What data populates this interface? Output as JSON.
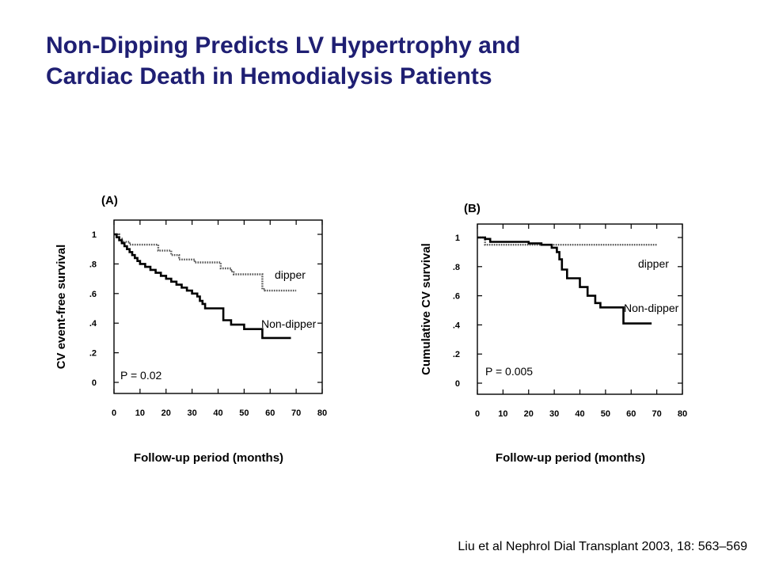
{
  "slide": {
    "title_line1": "Non-Dipping Predicts LV Hypertrophy and",
    "title_line2": "Cardiac Death in Hemodialysis Patients",
    "citation": "Liu et al Nephrol Dial Transplant 2003, 18: 563–569",
    "title_color": "#1f1f73"
  },
  "chart_data": [
    {
      "type": "line",
      "step": true,
      "panel_label": "(A)",
      "ylabel": "CV event-free survival",
      "xlabel": "Follow-up period (months)",
      "xlim": [
        0,
        80
      ],
      "ylim": [
        0,
        1
      ],
      "x_tick_labels": [
        "0",
        "10",
        "20",
        "30",
        "40",
        "50",
        "60",
        "70",
        "80"
      ],
      "y_tick_labels": [
        "0",
        ".2",
        ".4",
        ".6",
        ".8",
        "1"
      ],
      "y_tick_values": [
        0,
        0.2,
        0.4,
        0.6,
        0.8,
        1
      ],
      "annotation": "P = 0.02",
      "series": [
        {
          "name": "dipper",
          "style": "dashed",
          "x": [
            0,
            2,
            3,
            6,
            11,
            17,
            22,
            25,
            31,
            40,
            41,
            45,
            46,
            47,
            57,
            58,
            70
          ],
          "y": [
            1,
            0.97,
            0.95,
            0.93,
            0.93,
            0.89,
            0.86,
            0.83,
            0.81,
            0.81,
            0.77,
            0.75,
            0.73,
            0.73,
            0.63,
            0.62,
            0.62
          ]
        },
        {
          "name": "Non-dipper",
          "style": "solid",
          "x": [
            0,
            1,
            2,
            3,
            4,
            5,
            6,
            7,
            8,
            9,
            10,
            12,
            14,
            16,
            18,
            20,
            22,
            24,
            26,
            28,
            30,
            32,
            33,
            34,
            35,
            42,
            45,
            50,
            57,
            68
          ],
          "y": [
            1,
            0.98,
            0.96,
            0.94,
            0.92,
            0.9,
            0.88,
            0.86,
            0.84,
            0.82,
            0.8,
            0.78,
            0.76,
            0.74,
            0.72,
            0.7,
            0.68,
            0.66,
            0.64,
            0.62,
            0.6,
            0.58,
            0.55,
            0.53,
            0.5,
            0.42,
            0.39,
            0.36,
            0.3,
            0.3
          ]
        }
      ]
    },
    {
      "type": "line",
      "step": true,
      "panel_label": "(B)",
      "ylabel": "Cumulative CV survival",
      "xlabel": "Follow-up period (months)",
      "xlim": [
        0,
        80
      ],
      "ylim": [
        0,
        1
      ],
      "x_tick_labels": [
        "0",
        "10",
        "20",
        "30",
        "40",
        "50",
        "60",
        "70",
        "80"
      ],
      "y_tick_labels": [
        "0",
        ".2",
        ".4",
        ".6",
        ".8",
        "1"
      ],
      "y_tick_values": [
        0,
        0.2,
        0.4,
        0.6,
        0.8,
        1
      ],
      "annotation": "P = 0.005",
      "series": [
        {
          "name": "dipper",
          "style": "dashed",
          "x": [
            0,
            3,
            70
          ],
          "y": [
            1,
            0.95,
            0.95
          ]
        },
        {
          "name": "Non-dipper",
          "style": "solid",
          "x": [
            0,
            3,
            5,
            10,
            20,
            25,
            29,
            31,
            32,
            33,
            35,
            40,
            43,
            46,
            48,
            57,
            68
          ],
          "y": [
            1,
            0.99,
            0.97,
            0.97,
            0.96,
            0.95,
            0.93,
            0.9,
            0.85,
            0.78,
            0.72,
            0.66,
            0.6,
            0.55,
            0.52,
            0.41,
            0.41
          ]
        }
      ]
    }
  ]
}
